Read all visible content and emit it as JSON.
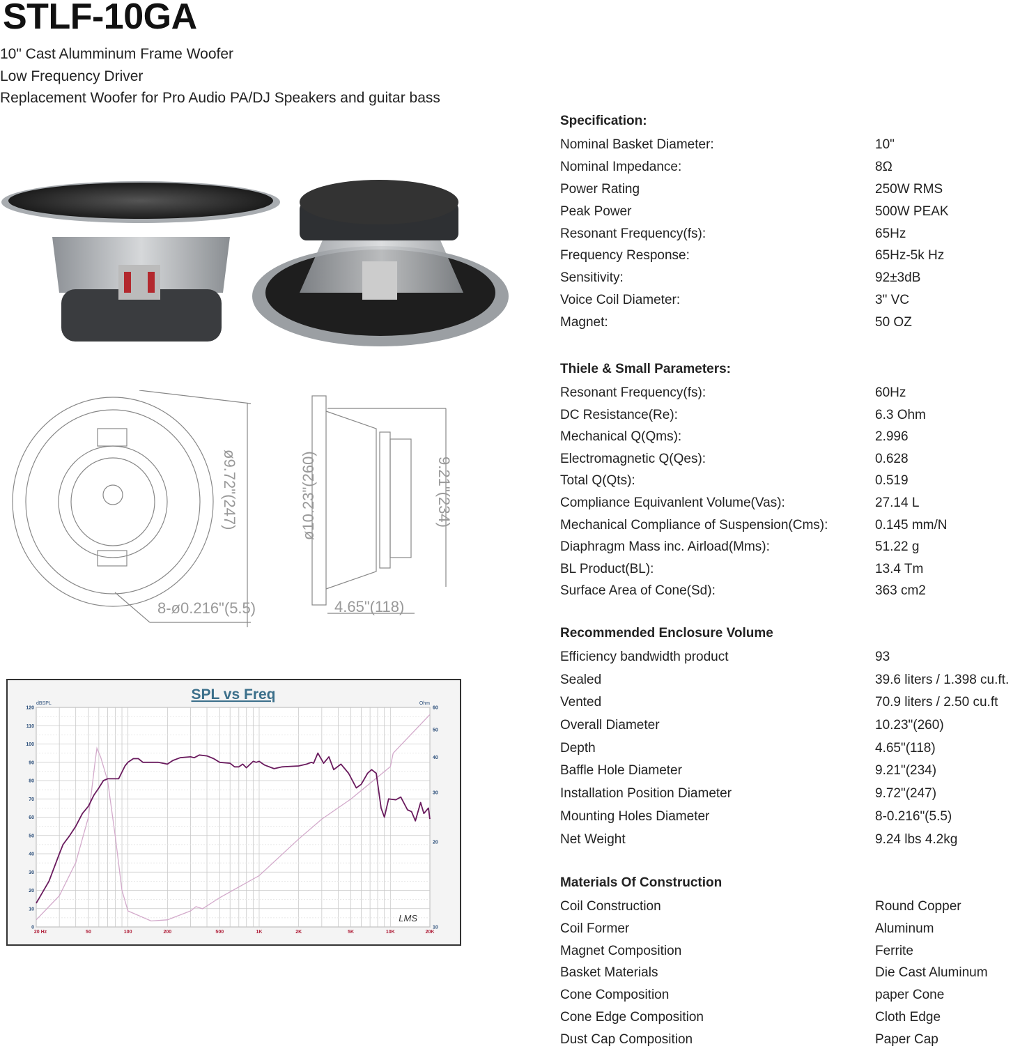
{
  "header": {
    "title": "STLF-10GA",
    "subtitles": [
      "10\" Cast Alumminum Frame Woofer",
      "Low Frequency Driver",
      "Replacement Woofer for Pro Audio PA/DJ Speakers and guitar bass"
    ]
  },
  "drawing": {
    "installation_dim": "ø9.72\"(247)",
    "mounting_holes_dim": "8-ø0.216\"(5.5)",
    "overall_dim": "ø10.23\"(260)",
    "baffle_dim": "9.21\"(234)",
    "depth_dim": "4.65\"(118)"
  },
  "sections": [
    {
      "title": "Specification:",
      "rows": [
        [
          "Nominal Basket Diameter:",
          "10\""
        ],
        [
          "Nominal Impedance:",
          "8Ω"
        ],
        [
          "Power Rating",
          "250W RMS"
        ],
        [
          "Peak Power",
          "500W PEAK"
        ],
        [
          "Resonant Frequency(fs):",
          "65Hz"
        ],
        [
          "Frequency Response:",
          "65Hz-5k Hz"
        ],
        [
          "Sensitivity:",
          "92±3dB"
        ],
        [
          "Voice Coil Diameter:",
          "3\" VC"
        ],
        [
          "Magnet:",
          "50 OZ"
        ]
      ]
    },
    {
      "title": "Thiele & Small Parameters:",
      "rows": [
        [
          "Resonant Frequency(fs):",
          "60Hz"
        ],
        [
          "DC Resistance(Re):",
          "6.3 Ohm"
        ],
        [
          "Mechanical Q(Qms):",
          "2.996"
        ],
        [
          "Electromagnetic Q(Qes):",
          "0.628"
        ],
        [
          "Total Q(Qts):",
          "0.519"
        ],
        [
          "Compliance Equivanlent Volume(Vas):",
          "27.14 L"
        ],
        [
          "Mechanical Compliance of Suspension(Cms):",
          "0.145 mm/N"
        ],
        [
          "Diaphragm Mass inc. Airload(Mms):",
          "51.22 g"
        ],
        [
          "BL Product(BL):",
          "13.4 Tm"
        ],
        [
          "Surface Area of Cone(Sd):",
          "363 cm2"
        ]
      ]
    },
    {
      "title": "Recommended Enclosure Volume",
      "rows": [
        [
          "Efficiency bandwidth product",
          "93"
        ],
        [
          "Sealed",
          "39.6 liters / 1.398 cu.ft."
        ],
        [
          "Vented",
          "70.9 liters / 2.50 cu.ft"
        ],
        [
          "Overall Diameter",
          "10.23\"(260)"
        ],
        [
          "Depth",
          "4.65\"(118)"
        ],
        [
          "Baffle Hole Diameter",
          "9.21\"(234)"
        ],
        [
          "Installation Position  Diameter",
          "9.72\"(247)"
        ],
        [
          "Mounting Holes Diameter",
          "8-0.216\"(5.5)"
        ],
        [
          "Net Weight",
          "9.24 lbs    4.2kg"
        ]
      ]
    },
    {
      "title": "Materials Of Construction",
      "rows": [
        [
          "Coil Construction",
          "Round Copper"
        ],
        [
          "Coil Former",
          "Aluminum"
        ],
        [
          "Magnet Composition",
          "Ferrite"
        ],
        [
          "Basket Materials",
          "Die Cast Aluminum"
        ],
        [
          "Cone Composition",
          "paper Cone"
        ],
        [
          "Cone Edge Composition",
          "Cloth Edge"
        ],
        [
          "Dust Cap Composition",
          "Paper Cap"
        ]
      ]
    }
  ],
  "chart_data": {
    "type": "line",
    "title": "SPL vs Freq",
    "ylabel": "dBSPL",
    "y2label": "Ohm",
    "x_scale": "log",
    "xlim": [
      20,
      20000
    ],
    "ylim": [
      0,
      120
    ],
    "y2lim": [
      10,
      60
    ],
    "y2_scale": "log",
    "grid": true,
    "watermark": "LMS",
    "x_ticks": [
      "20 Hz",
      "50",
      "100",
      "200",
      "500",
      "1K",
      "2K",
      "5K",
      "10K",
      "20K"
    ],
    "x_tick_values": [
      20,
      50,
      100,
      200,
      500,
      1000,
      2000,
      5000,
      10000,
      20000
    ],
    "y_ticks": [
      0,
      10,
      20,
      30,
      40,
      50,
      60,
      70,
      80,
      90,
      100,
      110,
      120
    ],
    "y2_ticks": [
      10,
      20,
      30,
      40,
      50,
      60
    ],
    "colors": {
      "spl": "#6a1b5e",
      "impedance": "#d3aacb",
      "title": "#3b6f8a",
      "x_ticks": "#b0203a",
      "y_ticks": "#2c4f7a"
    },
    "series": [
      {
        "axis": "left",
        "points": [
          [
            20,
            13
          ],
          [
            25,
            25
          ],
          [
            30,
            40
          ],
          [
            32,
            45
          ],
          [
            36,
            50
          ],
          [
            40,
            55
          ],
          [
            45,
            62
          ],
          [
            50,
            66
          ],
          [
            55,
            72
          ],
          [
            60,
            76
          ],
          [
            65,
            80
          ],
          [
            70,
            81
          ],
          [
            85,
            81
          ],
          [
            95,
            88
          ],
          [
            100,
            90
          ],
          [
            110,
            92
          ],
          [
            120,
            92
          ],
          [
            130,
            90
          ],
          [
            170,
            90
          ],
          [
            200,
            89
          ],
          [
            220,
            91
          ],
          [
            250,
            92.5
          ],
          [
            300,
            93
          ],
          [
            320,
            92.5
          ],
          [
            350,
            94
          ],
          [
            400,
            93.5
          ],
          [
            450,
            92
          ],
          [
            500,
            90
          ],
          [
            600,
            89.5
          ],
          [
            650,
            87.5
          ],
          [
            700,
            87.5
          ],
          [
            750,
            89
          ],
          [
            800,
            87
          ],
          [
            900,
            90.5
          ],
          [
            950,
            90
          ],
          [
            1000,
            90.5
          ],
          [
            1100,
            88.5
          ],
          [
            1300,
            86.5
          ],
          [
            1500,
            87.5
          ],
          [
            2000,
            88
          ],
          [
            2300,
            89
          ],
          [
            2500,
            90
          ],
          [
            2600,
            89.5
          ],
          [
            2800,
            95
          ],
          [
            3100,
            89.5
          ],
          [
            3400,
            93
          ],
          [
            3700,
            86
          ],
          [
            4200,
            89
          ],
          [
            4800,
            84
          ],
          [
            5500,
            76
          ],
          [
            6000,
            78
          ],
          [
            6700,
            84
          ],
          [
            7200,
            86
          ],
          [
            7800,
            84
          ],
          [
            8500,
            65
          ],
          [
            9000,
            60
          ],
          [
            9700,
            70
          ],
          [
            11000,
            69.5
          ],
          [
            12000,
            71
          ],
          [
            13500,
            64
          ],
          [
            14500,
            63
          ],
          [
            15500,
            58
          ],
          [
            17000,
            68
          ],
          [
            18000,
            62
          ],
          [
            19500,
            65
          ],
          [
            20000,
            59
          ]
        ]
      },
      {
        "axis": "right",
        "points": [
          [
            20,
            10.6
          ],
          [
            30,
            12.9
          ],
          [
            40,
            16.9
          ],
          [
            50,
            24.5
          ],
          [
            56,
            38
          ],
          [
            58,
            43
          ],
          [
            62,
            40
          ],
          [
            70,
            33
          ],
          [
            80,
            21
          ],
          [
            90,
            13.5
          ],
          [
            100,
            11.4
          ],
          [
            150,
            10.5
          ],
          [
            200,
            10.6
          ],
          [
            300,
            11.4
          ],
          [
            330,
            11.8
          ],
          [
            370,
            11.6
          ],
          [
            500,
            12.7
          ],
          [
            1000,
            15.2
          ],
          [
            2000,
            20.5
          ],
          [
            3000,
            24.1
          ],
          [
            5000,
            28.4
          ],
          [
            10000,
            37
          ],
          [
            10500,
            41.3
          ],
          [
            20000,
            56.6
          ]
        ]
      }
    ]
  }
}
